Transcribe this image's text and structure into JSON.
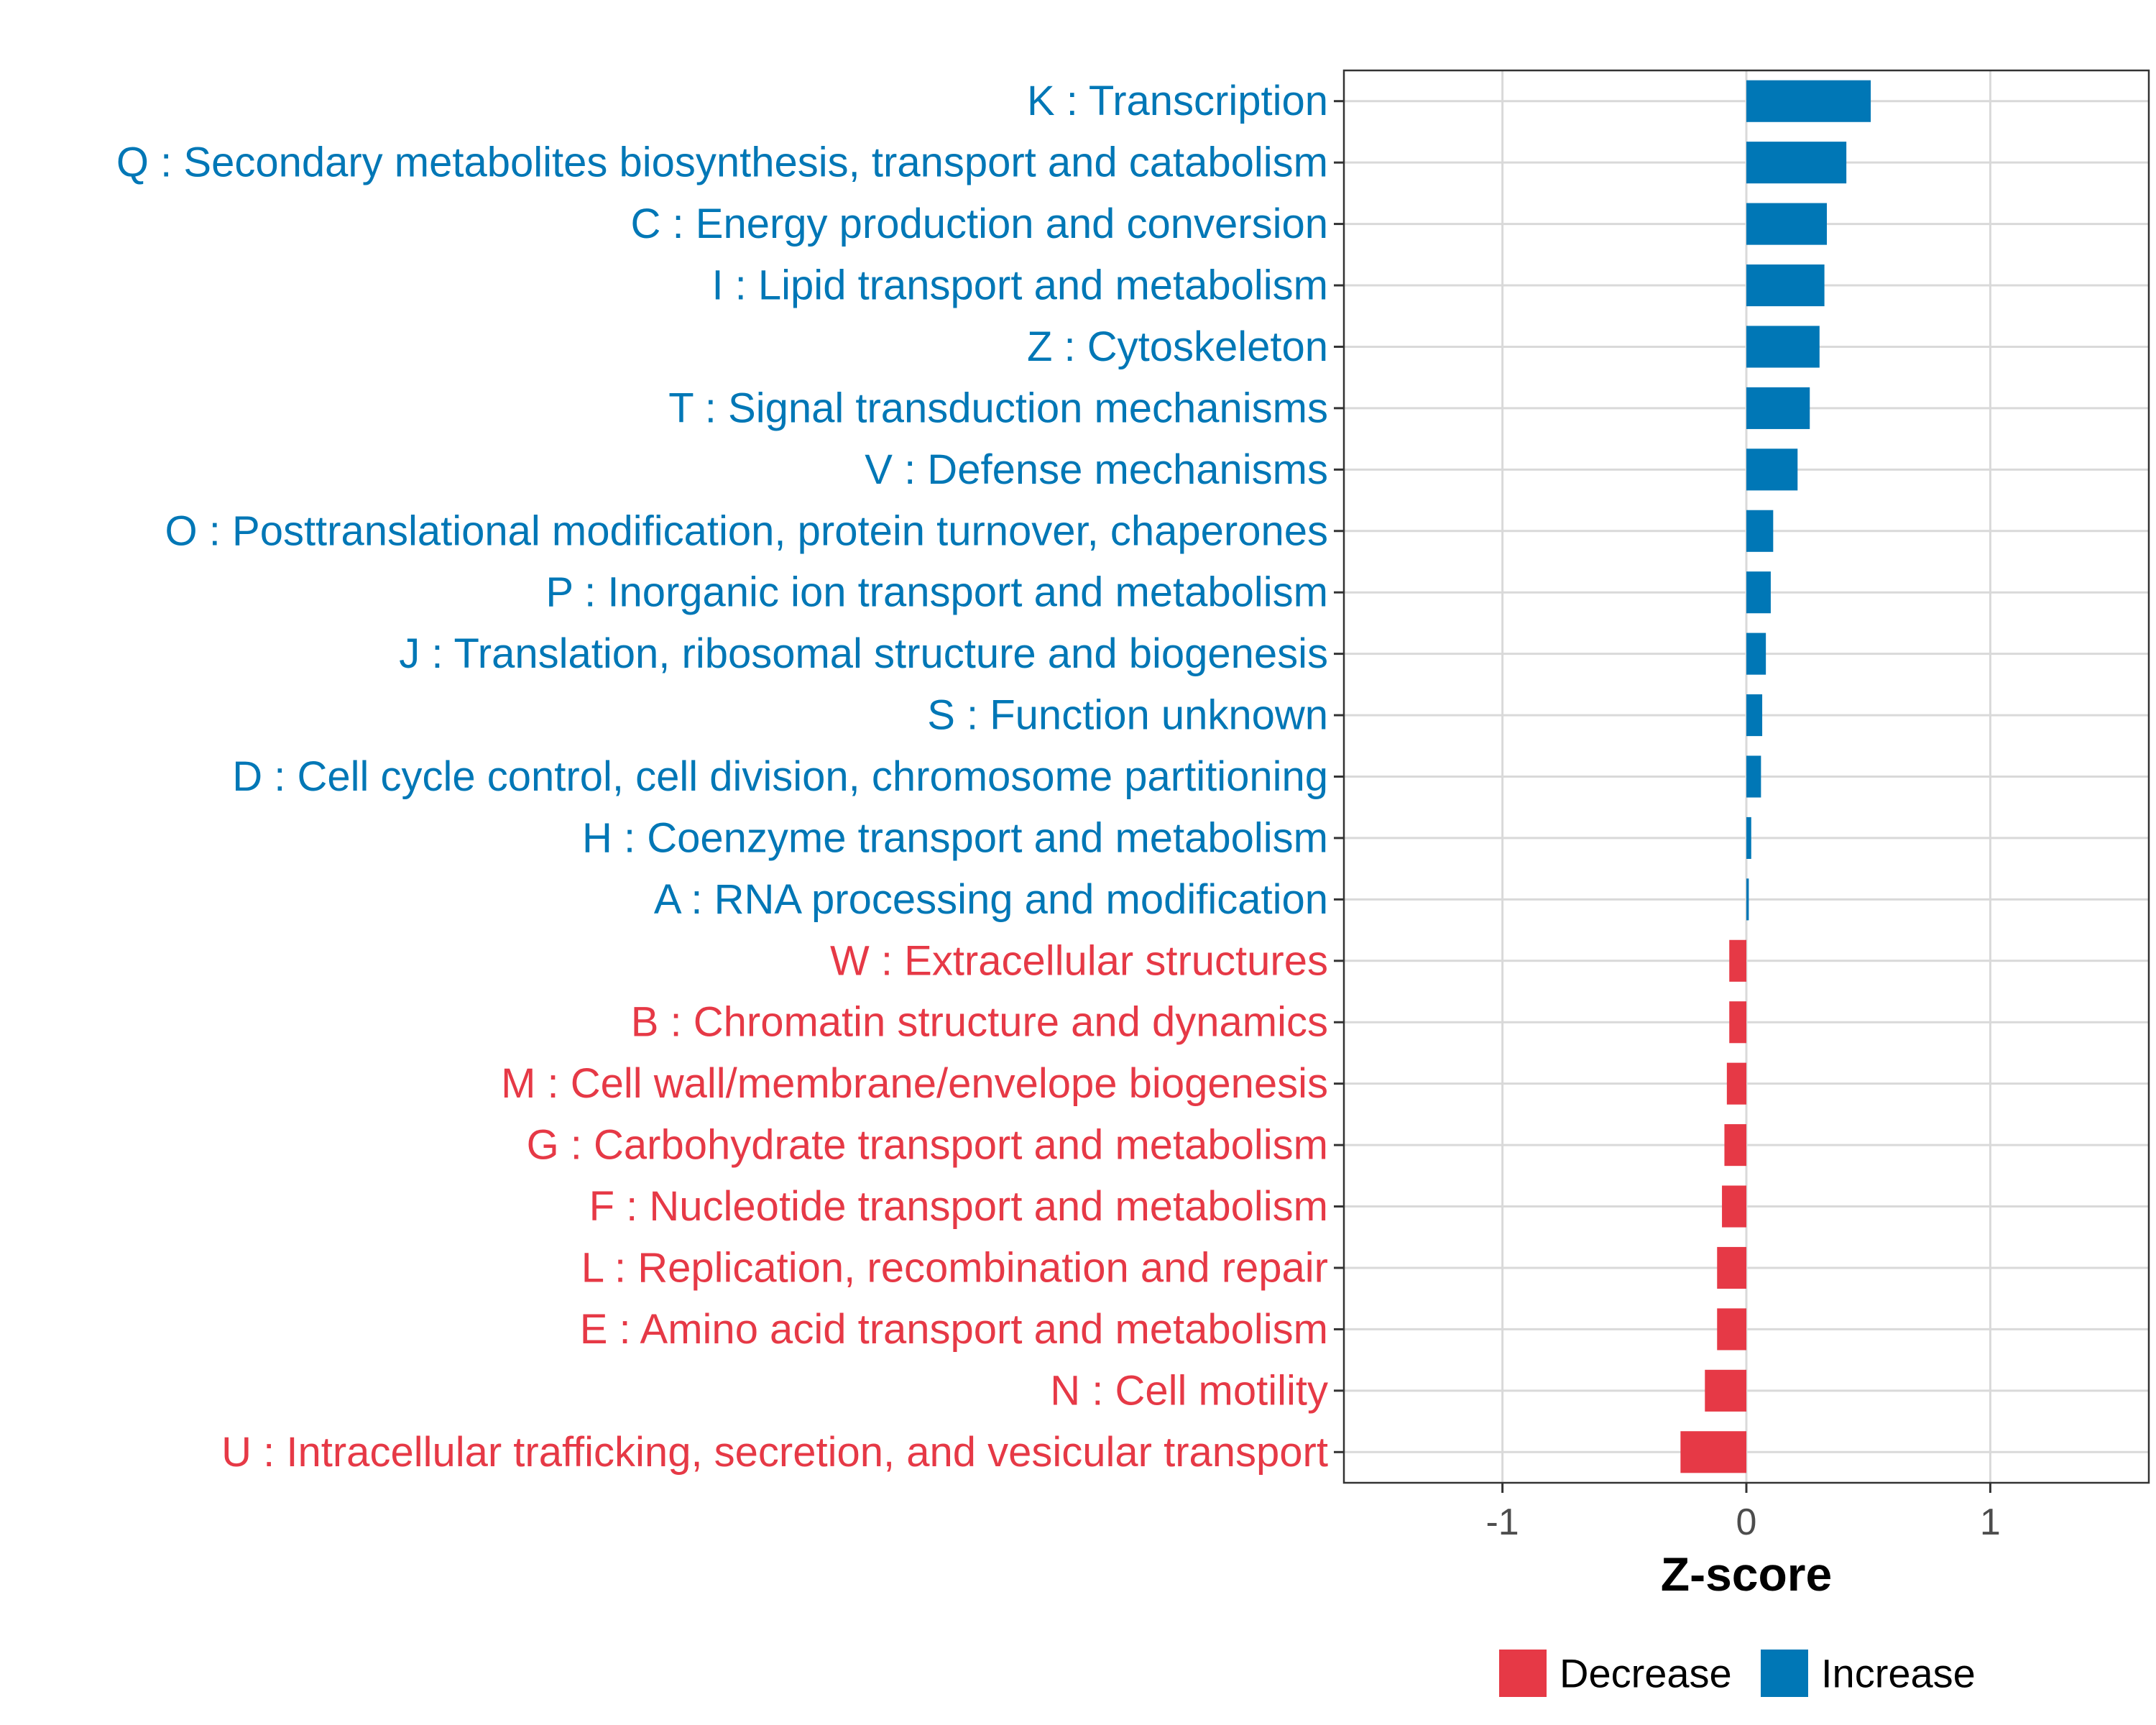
{
  "chart_data": {
    "type": "bar",
    "orientation": "horizontal",
    "title": "",
    "xlabel": "Z-score",
    "ylabel": "",
    "xlim": [
      -1.65,
      1.65
    ],
    "xticks": [
      -1,
      0,
      1
    ],
    "xtick_labels": [
      "-1",
      "0",
      "1"
    ],
    "grid": true,
    "legend_position": "bottom",
    "colors": {
      "Decrease": "#e63946",
      "Increase": "#0077b6"
    },
    "legend": [
      {
        "name": "Decrease",
        "color": "#e63946"
      },
      {
        "name": "Increase",
        "color": "#0077b6"
      }
    ],
    "categories": [
      "K : Transcription",
      "Q : Secondary metabolites biosynthesis, transport and catabolism",
      "C : Energy production and conversion",
      "I : Lipid transport and metabolism",
      "Z : Cytoskeleton",
      "T : Signal transduction mechanisms",
      "V : Defense mechanisms",
      "O : Posttranslational modification, protein turnover, chaperones",
      "P : Inorganic ion transport and metabolism",
      "J : Translation, ribosomal structure and biogenesis",
      "S : Function unknown",
      "D : Cell cycle control, cell division, chromosome partitioning",
      "H : Coenzyme transport and metabolism",
      "A : RNA processing and modification",
      "W : Extracellular structures",
      "B : Chromatin structure and dynamics",
      "M : Cell wall/membrane/envelope biogenesis",
      "G : Carbohydrate transport and metabolism",
      "F : Nucleotide transport and metabolism",
      "L : Replication, recombination and repair",
      "E : Amino acid transport and metabolism",
      "N : Cell motility",
      "U : Intracellular trafficking, secretion, and vesicular transport"
    ],
    "values": [
      0.51,
      0.41,
      0.33,
      0.32,
      0.3,
      0.26,
      0.21,
      0.11,
      0.1,
      0.08,
      0.065,
      0.06,
      0.02,
      0.01,
      -0.07,
      -0.07,
      -0.08,
      -0.09,
      -0.1,
      -0.12,
      -0.12,
      -0.17,
      -0.27
    ],
    "groups": [
      "Increase",
      "Increase",
      "Increase",
      "Increase",
      "Increase",
      "Increase",
      "Increase",
      "Increase",
      "Increase",
      "Increase",
      "Increase",
      "Increase",
      "Increase",
      "Increase",
      "Decrease",
      "Decrease",
      "Decrease",
      "Decrease",
      "Decrease",
      "Decrease",
      "Decrease",
      "Decrease",
      "Decrease"
    ]
  }
}
